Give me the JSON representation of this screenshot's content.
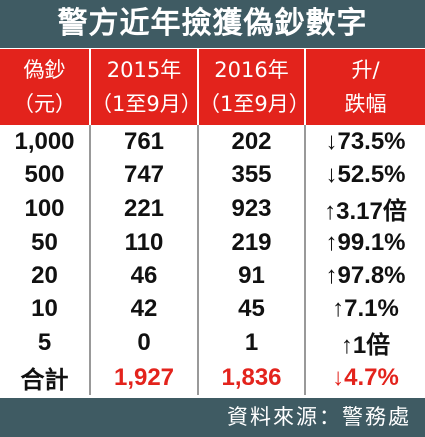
{
  "title": "警方近年撿獲偽鈔數字",
  "table": {
    "header": [
      [
        "偽鈔",
        "（元）"
      ],
      [
        "2015年",
        "（1至9月）"
      ],
      [
        "2016年",
        "（1至9月）"
      ],
      [
        "升/",
        "跌幅"
      ]
    ],
    "rows": [
      [
        "1,000",
        "761",
        "202",
        "↓73.5%"
      ],
      [
        "500",
        "747",
        "355",
        "↓52.5%"
      ],
      [
        "100",
        "221",
        "923",
        "↑3.17倍"
      ],
      [
        "50",
        "110",
        "219",
        "↑99.1%"
      ],
      [
        "20",
        "46",
        "91",
        "↑97.8%"
      ],
      [
        "10",
        "42",
        "45",
        "↑7.1%"
      ],
      [
        "5",
        "0",
        "1",
        "↑1倍"
      ],
      [
        "合計",
        "1,927",
        "1,836",
        "↓4.7%"
      ]
    ]
  },
  "source": "資料來源：警務處"
}
